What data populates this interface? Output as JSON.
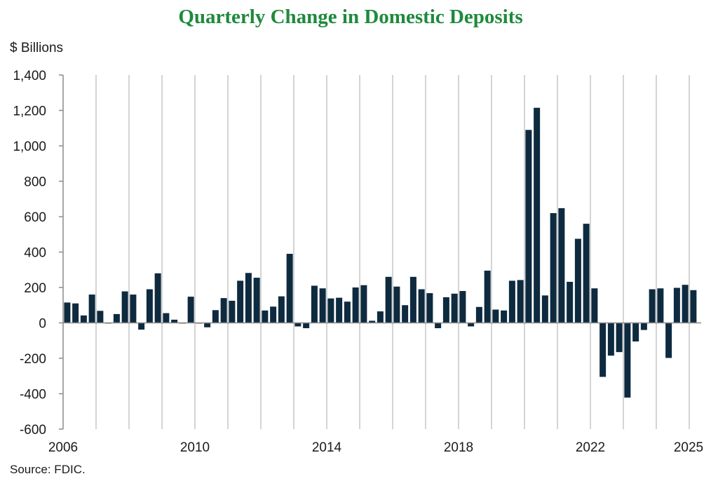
{
  "colors": {
    "title": "#1e8a3c",
    "bar": "#0e2a3f",
    "grid": "#d4d4d4",
    "axis": "#8a8a8a"
  },
  "chart_data": {
    "type": "bar",
    "title": "Quarterly Change in Domestic Deposits",
    "ylabel": "$ Billions",
    "source": "Source: FDIC.",
    "ylim": [
      -600,
      1400
    ],
    "yticks": [
      1400,
      1200,
      1000,
      800,
      600,
      400,
      200,
      0,
      -200,
      -400,
      -600
    ],
    "ytick_labels": [
      "1,400",
      "1,200",
      "1,000",
      "800",
      "600",
      "400",
      "200",
      "0",
      "-200",
      "-400",
      "-600"
    ],
    "xtick_labels": [
      "2006",
      "2010",
      "2014",
      "2018",
      "2022",
      "2025"
    ],
    "xtick_years": [
      2006,
      2010,
      2014,
      2018,
      2022,
      2025
    ],
    "first_quarter": "2006Q1",
    "vertical_grid": "yearly",
    "values": [
      115,
      110,
      42,
      160,
      68,
      -3,
      50,
      178,
      160,
      -38,
      190,
      280,
      55,
      18,
      -2,
      148,
      -3,
      -25,
      72,
      140,
      125,
      238,
      282,
      255,
      70,
      92,
      150,
      390,
      -20,
      -30,
      210,
      195,
      138,
      142,
      120,
      200,
      213,
      12,
      65,
      260,
      205,
      100,
      260,
      190,
      168,
      -30,
      145,
      165,
      180,
      -20,
      90,
      295,
      75,
      70,
      238,
      242,
      1090,
      1215,
      155,
      620,
      648,
      232,
      475,
      560,
      195,
      -305,
      -185,
      -165,
      -422,
      -105,
      -40,
      190,
      195,
      -198,
      198,
      215,
      185
    ]
  }
}
